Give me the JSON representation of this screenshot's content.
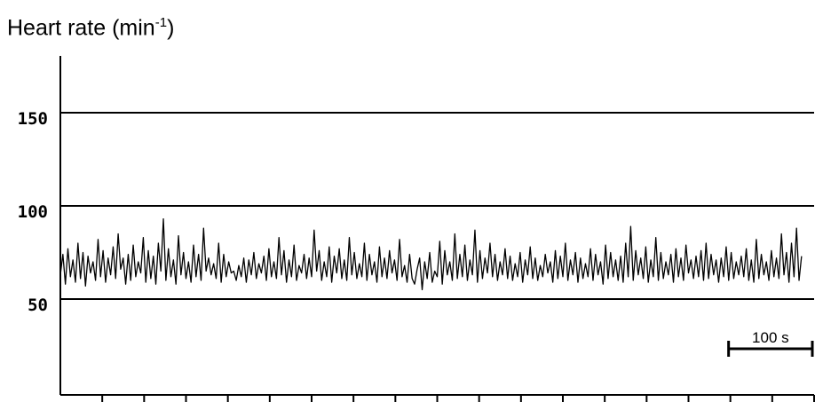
{
  "title": {
    "main": "Heart rate (min",
    "superscript": "-1",
    "close": ")"
  },
  "scale_bar": {
    "label": "100 s",
    "seconds": 100
  },
  "chart_data": {
    "type": "line",
    "ylabel": "Heart rate (min-1)",
    "ylim": [
      0,
      180
    ],
    "y_ticks": [
      50,
      100,
      150
    ],
    "y_tick_labels": [
      "150",
      "100",
      "50"
    ],
    "xlim": [
      0,
      900
    ],
    "x_unit": "s",
    "x_tick_spacing": 50,
    "grid": "horizontal lines at 50, 100, 150",
    "series": [
      {
        "color": "#000000",
        "stats": {
          "mean": 67,
          "min": 54,
          "max": 93
        },
        "x_step": 3,
        "values": [
          63,
          74,
          58,
          77,
          62,
          71,
          59,
          80,
          61,
          75,
          57,
          73,
          64,
          70,
          60,
          82,
          62,
          76,
          59,
          72,
          63,
          78,
          61,
          85,
          66,
          72,
          58,
          74,
          60,
          79,
          62,
          70,
          64,
          83,
          59,
          76,
          61,
          73,
          58,
          80,
          65,
          93,
          60,
          77,
          62,
          71,
          58,
          84,
          63,
          75,
          61,
          70,
          59,
          79,
          62,
          74,
          60,
          88,
          65,
          72,
          63,
          69,
          61,
          80,
          59,
          74,
          62,
          70,
          64,
          65,
          60,
          68,
          62,
          72,
          59,
          71,
          63,
          75,
          61,
          69,
          64,
          73,
          60,
          77,
          62,
          70,
          61,
          83,
          63,
          76,
          59,
          71,
          62,
          79,
          60,
          68,
          64,
          74,
          61,
          72,
          62,
          87,
          65,
          76,
          60,
          70,
          62,
          78,
          59,
          73,
          64,
          77,
          61,
          71,
          60,
          83,
          63,
          75,
          61,
          69,
          62,
          80,
          60,
          74,
          63,
          70,
          59,
          78,
          62,
          72,
          61,
          76,
          64,
          71,
          60,
          82,
          62,
          68,
          59,
          74,
          61,
          58,
          66,
          72,
          55,
          70,
          61,
          75,
          59,
          65,
          62,
          81,
          58,
          76,
          63,
          70,
          60,
          85,
          61,
          74,
          62,
          79,
          60,
          71,
          63,
          87,
          59,
          76,
          61,
          72,
          64,
          80,
          62,
          74,
          60,
          70,
          63,
          77,
          61,
          73,
          60,
          69,
          62,
          75,
          59,
          71,
          63,
          78,
          61,
          72,
          60,
          68,
          62,
          74,
          64,
          70,
          59,
          76,
          61,
          73,
          62,
          80,
          60,
          71,
          63,
          75,
          59,
          72,
          61,
          69,
          62,
          77,
          60,
          74,
          63,
          70,
          58,
          79,
          61,
          75,
          62,
          71,
          60,
          73,
          59,
          80,
          62,
          89,
          60,
          76,
          63,
          72,
          61,
          78,
          59,
          71,
          62,
          83,
          60,
          75,
          61,
          70,
          63,
          74,
          59,
          77,
          62,
          72,
          60,
          79,
          64,
          71,
          61,
          73,
          62,
          76,
          60,
          80,
          61,
          74,
          63,
          71,
          59,
          72,
          62,
          78,
          60,
          75,
          61,
          70,
          63,
          73,
          62,
          77,
          60,
          71,
          59,
          82,
          61,
          74,
          63,
          70,
          60,
          76,
          62,
          72,
          61,
          85,
          63,
          75,
          59,
          80,
          62,
          88,
          60,
          73
        ]
      }
    ]
  }
}
